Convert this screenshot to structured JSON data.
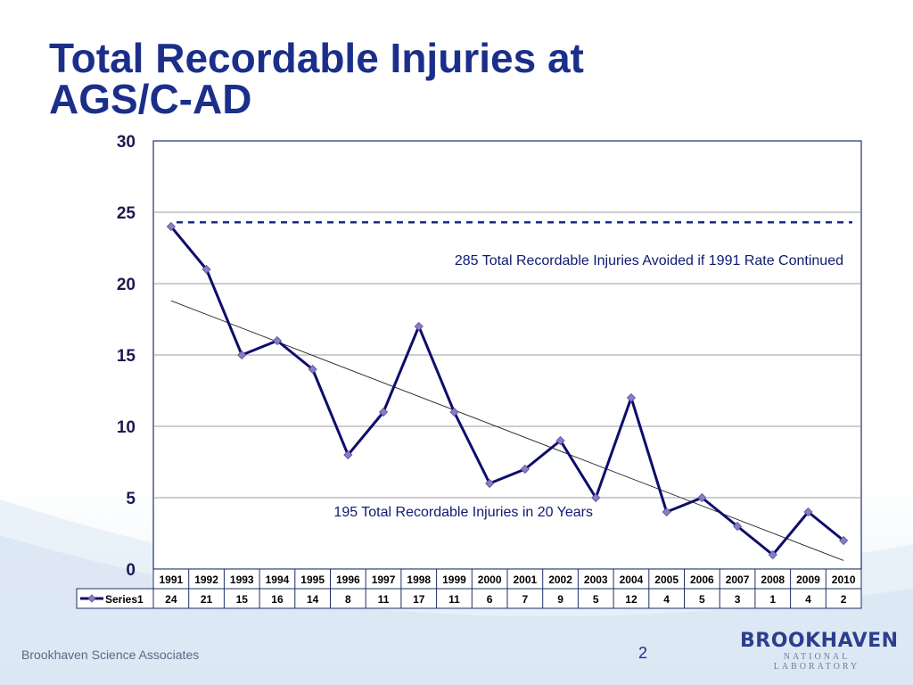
{
  "slide": {
    "title_line1": "Total Recordable Injuries at",
    "title_line2": "AGS/C-AD",
    "footer_left": "Brookhaven Science Associates",
    "page_number": "2",
    "logo_main": "BROOKHAVEN",
    "logo_sub": "NATIONAL LABORATORY",
    "colors": {
      "title": "#1b2f8a",
      "series": "#0d0d6b",
      "marker": "#8a7cc4"
    }
  },
  "chart_data": {
    "type": "line",
    "categories": [
      "1991",
      "1992",
      "1993",
      "1994",
      "1995",
      "1996",
      "1997",
      "1998",
      "1999",
      "2000",
      "2001",
      "2002",
      "2003",
      "2004",
      "2005",
      "2006",
      "2007",
      "2008",
      "2009",
      "2010"
    ],
    "series": [
      {
        "name": "Series1",
        "values": [
          24,
          21,
          15,
          16,
          14,
          8,
          11,
          17,
          11,
          6,
          7,
          9,
          5,
          12,
          4,
          5,
          3,
          1,
          4,
          2
        ]
      }
    ],
    "ylim": [
      0,
      30
    ],
    "yticks": [
      0,
      5,
      10,
      15,
      20,
      25,
      30
    ],
    "grid": true,
    "trendline": {
      "type": "linear",
      "start": 18.8,
      "end": 0.6
    },
    "reference_line": {
      "value": 24.3,
      "style": "dashed"
    },
    "annotations": [
      "285 Total Recordable Injuries Avoided if 1991 Rate Continued",
      "195 Total Recordable Injuries in 20 Years"
    ],
    "data_table": true
  }
}
